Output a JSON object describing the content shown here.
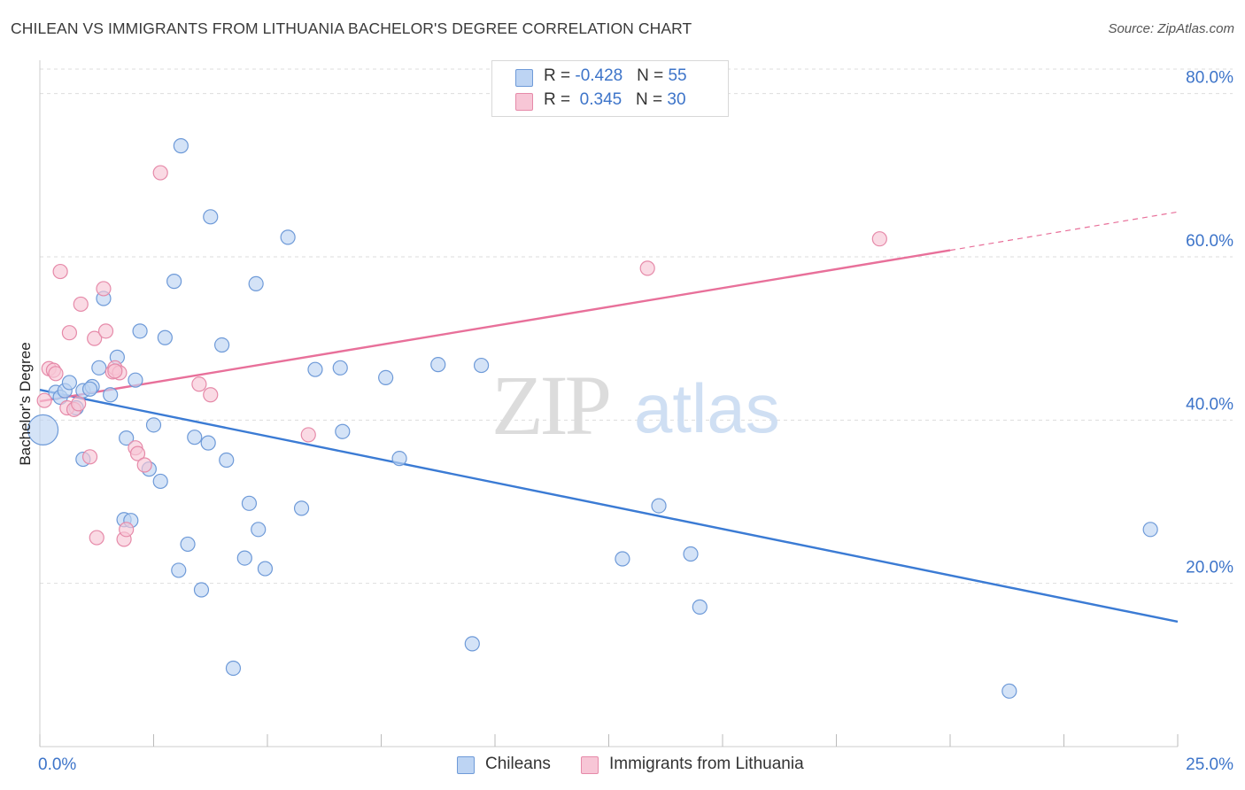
{
  "title": "CHILEAN VS IMMIGRANTS FROM LITHUANIA BACHELOR'S DEGREE CORRELATION CHART",
  "source": "Source: ZipAtlas.com",
  "watermark": {
    "zip": "ZIP",
    "atlas": "atlas"
  },
  "legend": {
    "row1": {
      "r_label": "R = ",
      "r_value": "-0.428",
      "n_label": "N = ",
      "n_value": "55"
    },
    "row2": {
      "r_label": "R = ",
      "r_value": " 0.345",
      "n_label": "N = ",
      "n_value": "30"
    }
  },
  "colors": {
    "blue": "#3b7bd4",
    "blue_fill": "#bdd4f3",
    "pink": "#e8709a",
    "pink_fill": "#f7c6d6",
    "grid": "#dddddd",
    "axis_label": "#3d74c9"
  },
  "chart_data": {
    "type": "scatter",
    "title": "CHILEAN VS IMMIGRANTS FROM LITHUANIA BACHELOR'S DEGREE CORRELATION CHART",
    "xlabel": "",
    "ylabel": "Bachelor's Degree",
    "xlim": [
      0,
      25
    ],
    "ylim": [
      0,
      83
    ],
    "x_tick_labels": [
      "0.0%",
      "25.0%"
    ],
    "y_ticks": [
      20,
      40,
      60,
      80
    ],
    "y_tick_labels": [
      "20.0%",
      "40.0%",
      "60.0%",
      "80.0%"
    ],
    "grid": true,
    "legend_position": "bottom",
    "series": [
      {
        "name": "Chileans",
        "color": "#3b7bd4",
        "trend": {
          "x": [
            0,
            25
          ],
          "y": [
            43.7,
            15.3
          ]
        },
        "points": [
          {
            "x": 0.07,
            "y": 38.8,
            "big": true
          },
          {
            "x": 0.35,
            "y": 43.4
          },
          {
            "x": 0.45,
            "y": 42.8
          },
          {
            "x": 0.55,
            "y": 43.6
          },
          {
            "x": 0.65,
            "y": 44.6
          },
          {
            "x": 0.8,
            "y": 41.5
          },
          {
            "x": 0.95,
            "y": 43.6
          },
          {
            "x": 1.15,
            "y": 44.1
          },
          {
            "x": 0.95,
            "y": 35.2
          },
          {
            "x": 1.3,
            "y": 46.4
          },
          {
            "x": 1.4,
            "y": 54.9
          },
          {
            "x": 1.55,
            "y": 43.1
          },
          {
            "x": 1.7,
            "y": 47.7
          },
          {
            "x": 1.85,
            "y": 27.8
          },
          {
            "x": 1.9,
            "y": 37.8
          },
          {
            "x": 2.0,
            "y": 27.7
          },
          {
            "x": 2.1,
            "y": 44.9
          },
          {
            "x": 2.2,
            "y": 50.9
          },
          {
            "x": 2.4,
            "y": 34.0
          },
          {
            "x": 2.5,
            "y": 39.4
          },
          {
            "x": 2.65,
            "y": 32.5
          },
          {
            "x": 2.75,
            "y": 50.1
          },
          {
            "x": 2.95,
            "y": 57.0
          },
          {
            "x": 3.05,
            "y": 21.6
          },
          {
            "x": 3.1,
            "y": 73.6
          },
          {
            "x": 3.25,
            "y": 24.8
          },
          {
            "x": 3.4,
            "y": 37.9
          },
          {
            "x": 3.55,
            "y": 19.2
          },
          {
            "x": 3.7,
            "y": 37.2
          },
          {
            "x": 3.75,
            "y": 64.9
          },
          {
            "x": 4.0,
            "y": 49.2
          },
          {
            "x": 4.1,
            "y": 35.1
          },
          {
            "x": 4.25,
            "y": 9.6
          },
          {
            "x": 4.5,
            "y": 23.1
          },
          {
            "x": 4.6,
            "y": 29.8
          },
          {
            "x": 4.75,
            "y": 56.7
          },
          {
            "x": 4.8,
            "y": 26.6
          },
          {
            "x": 4.95,
            "y": 21.8
          },
          {
            "x": 5.45,
            "y": 62.4
          },
          {
            "x": 5.75,
            "y": 29.2
          },
          {
            "x": 6.05,
            "y": 46.2
          },
          {
            "x": 6.6,
            "y": 46.4
          },
          {
            "x": 6.65,
            "y": 38.6
          },
          {
            "x": 7.6,
            "y": 45.2
          },
          {
            "x": 7.9,
            "y": 35.3
          },
          {
            "x": 8.75,
            "y": 46.8
          },
          {
            "x": 9.5,
            "y": 12.6
          },
          {
            "x": 9.7,
            "y": 46.7
          },
          {
            "x": 12.8,
            "y": 23.0
          },
          {
            "x": 13.6,
            "y": 29.5
          },
          {
            "x": 14.3,
            "y": 23.6
          },
          {
            "x": 14.5,
            "y": 17.1
          },
          {
            "x": 21.3,
            "y": 6.8
          },
          {
            "x": 24.4,
            "y": 26.6
          },
          {
            "x": 1.1,
            "y": 43.8
          }
        ]
      },
      {
        "name": "Immigrants from Lithuania",
        "color": "#e8709a",
        "trend": {
          "x": [
            0,
            20
          ],
          "y": [
            42.3,
            60.8
          ]
        },
        "trend_dashed": {
          "x": [
            20,
            25
          ],
          "y": [
            60.8,
            65.5
          ]
        },
        "points": [
          {
            "x": 0.1,
            "y": 42.4
          },
          {
            "x": 0.2,
            "y": 46.3
          },
          {
            "x": 0.3,
            "y": 46.1
          },
          {
            "x": 0.35,
            "y": 45.7
          },
          {
            "x": 0.45,
            "y": 58.2
          },
          {
            "x": 0.6,
            "y": 41.5
          },
          {
            "x": 0.65,
            "y": 50.7
          },
          {
            "x": 0.75,
            "y": 41.3
          },
          {
            "x": 0.9,
            "y": 54.2
          },
          {
            "x": 1.1,
            "y": 35.5
          },
          {
            "x": 1.2,
            "y": 50.0
          },
          {
            "x": 1.25,
            "y": 25.6
          },
          {
            "x": 1.4,
            "y": 56.1
          },
          {
            "x": 1.45,
            "y": 50.9
          },
          {
            "x": 1.6,
            "y": 45.9
          },
          {
            "x": 1.65,
            "y": 46.4
          },
          {
            "x": 1.75,
            "y": 45.8
          },
          {
            "x": 1.85,
            "y": 25.4
          },
          {
            "x": 1.9,
            "y": 26.6
          },
          {
            "x": 2.1,
            "y": 36.6
          },
          {
            "x": 2.15,
            "y": 35.9
          },
          {
            "x": 2.3,
            "y": 34.5
          },
          {
            "x": 2.65,
            "y": 70.3
          },
          {
            "x": 3.5,
            "y": 44.4
          },
          {
            "x": 3.75,
            "y": 43.1
          },
          {
            "x": 5.9,
            "y": 38.2
          },
          {
            "x": 13.35,
            "y": 58.6
          },
          {
            "x": 18.45,
            "y": 62.2
          },
          {
            "x": 0.85,
            "y": 42.0
          },
          {
            "x": 1.65,
            "y": 46.0
          }
        ]
      }
    ]
  },
  "bottom_legend": [
    "Chileans",
    "Immigrants from Lithuania"
  ]
}
